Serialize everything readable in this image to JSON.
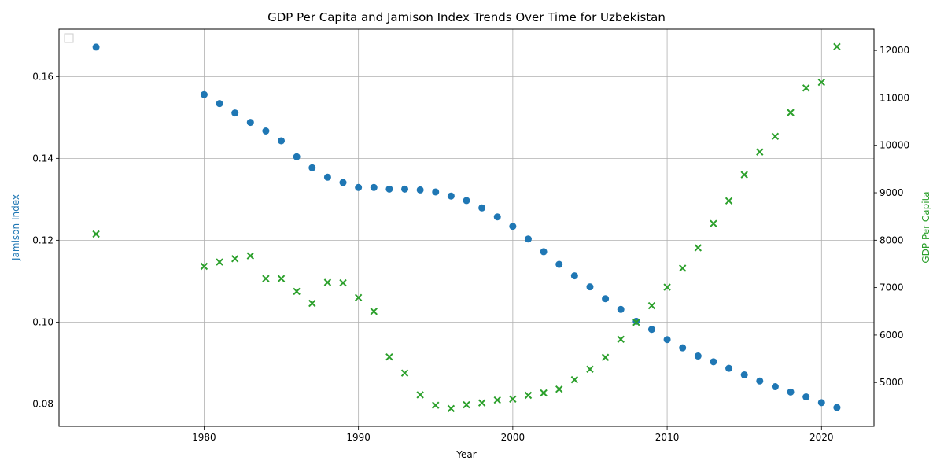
{
  "chart_data": {
    "type": "scatter",
    "title": "GDP Per Capita and Jamison Index Trends Over Time for Uzbekistan",
    "xlabel": "Year",
    "ylabel_left": "Jamison Index",
    "ylabel_right": "GDP Per Capita",
    "xlim": [
      1970.6,
      2023.4
    ],
    "ylim_left": [
      0.0745,
      0.1716
    ],
    "ylim_right": [
      4075,
      12450
    ],
    "x_ticks": [
      "1980",
      "1990",
      "2000",
      "2010",
      "2020"
    ],
    "y_left_ticks": [
      "0.08",
      "0.10",
      "0.12",
      "0.14",
      "0.16"
    ],
    "y_right_ticks": [
      "5000",
      "6000",
      "7000",
      "8000",
      "9000",
      "10000",
      "11000",
      "12000"
    ],
    "grid": true,
    "legend": "top-left (empty)",
    "colors": {
      "left_series": "#1f77b4",
      "right_series": "#2ca02c"
    },
    "series": [
      {
        "axis": "left",
        "marker": "circle",
        "x": [
          1973,
          1980,
          1981,
          1982,
          1983,
          1984,
          1985,
          1986,
          1987,
          1988,
          1989,
          1990,
          1991,
          1992,
          1993,
          1994,
          1995,
          1996,
          1997,
          1998,
          1999,
          2000,
          2001,
          2002,
          2003,
          2004,
          2005,
          2006,
          2007,
          2008,
          2009,
          2010,
          2011,
          2012,
          2013,
          2014,
          2015,
          2016,
          2017,
          2018,
          2019,
          2020,
          2021
        ],
        "y": [
          0.1672,
          0.1556,
          0.1534,
          0.1511,
          0.1488,
          0.1467,
          0.1443,
          0.1404,
          0.1377,
          0.1354,
          0.1341,
          0.1329,
          0.1329,
          0.1325,
          0.1325,
          0.1323,
          0.1318,
          0.1308,
          0.1297,
          0.1279,
          0.1257,
          0.1234,
          0.1203,
          0.1172,
          0.1141,
          0.1113,
          0.1086,
          0.1057,
          0.1031,
          0.1002,
          0.0982,
          0.0957,
          0.0937,
          0.0917,
          0.0903,
          0.0887,
          0.0871,
          0.0856,
          0.0842,
          0.0829,
          0.0817,
          0.0803,
          0.0791
        ]
      },
      {
        "axis": "right",
        "marker": "x",
        "x": [
          1973,
          1980,
          1981,
          1982,
          1983,
          1984,
          1985,
          1986,
          1987,
          1988,
          1989,
          1990,
          1991,
          1992,
          1993,
          1994,
          1995,
          1996,
          1997,
          1998,
          1999,
          2000,
          2001,
          2002,
          2003,
          2004,
          2005,
          2006,
          2007,
          2008,
          2009,
          2010,
          2011,
          2012,
          2013,
          2014,
          2015,
          2016,
          2017,
          2018,
          2019,
          2020,
          2021
        ],
        "y": [
          8130,
          7450,
          7540,
          7610,
          7670,
          7190,
          7190,
          6920,
          6670,
          7110,
          7100,
          6790,
          6500,
          5540,
          5200,
          4740,
          4520,
          4450,
          4530,
          4570,
          4630,
          4650,
          4730,
          4780,
          4860,
          5060,
          5280,
          5530,
          5910,
          6270,
          6620,
          7010,
          7410,
          7840,
          8350,
          8830,
          9380,
          9860,
          10190,
          10690,
          11210,
          11330,
          12080
        ]
      }
    ]
  }
}
